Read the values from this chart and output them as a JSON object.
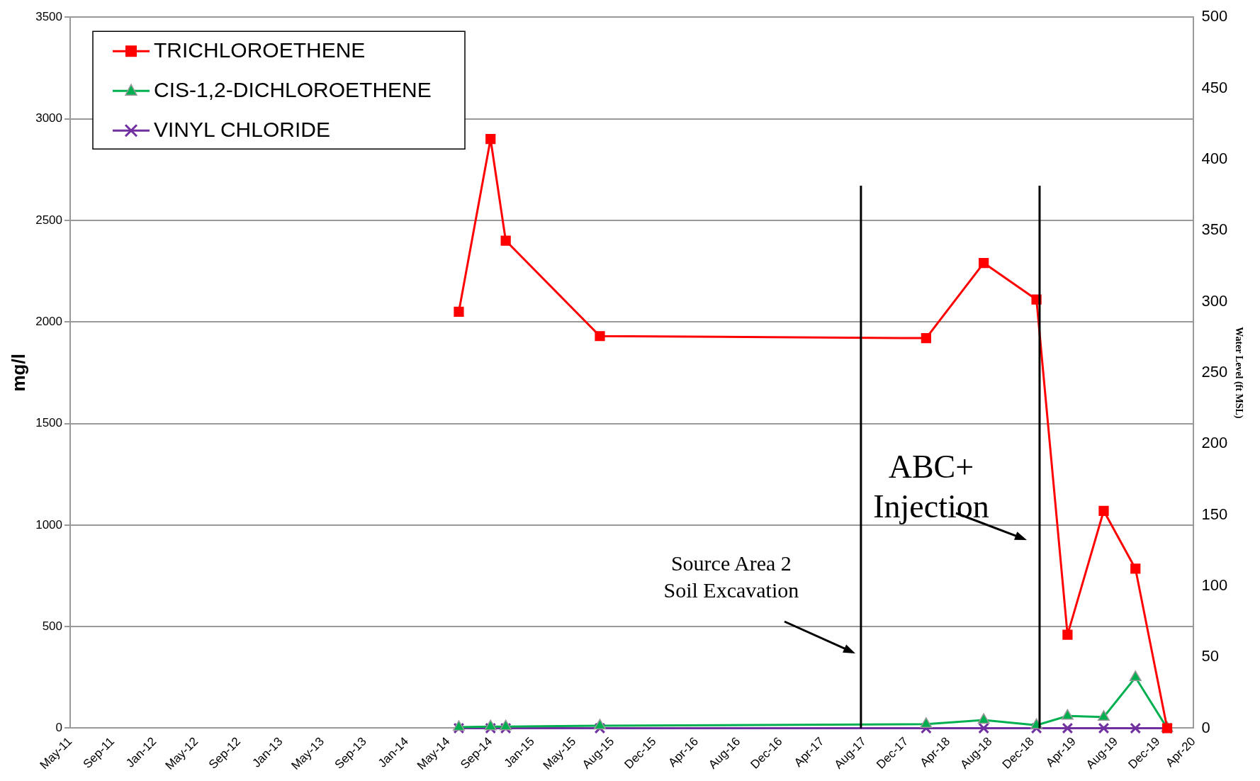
{
  "chart_data": {
    "type": "line",
    "ylabel": "mg/l",
    "y2label": "Water Level (ft MSL)",
    "x": [
      "2014-06-01",
      "2014-09-01",
      "2014-10-15",
      "2015-07-15",
      "2018-02-15",
      "2018-08-01",
      "2019-01-01",
      "2019-04-01",
      "2019-07-15",
      "2019-10-15",
      "2020-01-15"
    ],
    "series": [
      {
        "name": "TRICHLOROETHENE",
        "color": "#ff0000",
        "marker": "square",
        "values": [
          2050,
          2900,
          2400,
          1930,
          1920,
          2290,
          2110,
          460,
          1070,
          785,
          0
        ]
      },
      {
        "name": "CIS-1,2-DICHLOROETHENE",
        "color": "#00b050",
        "marker": "triangle",
        "values": [
          5,
          8,
          8,
          12,
          20,
          40,
          15,
          60,
          55,
          250,
          0
        ]
      },
      {
        "name": "VINYL CHLORIDE",
        "color": "#7030a0",
        "marker": "cross",
        "values": [
          0,
          0,
          0,
          0,
          0,
          0,
          0,
          0,
          0,
          0,
          0
        ]
      }
    ],
    "xlim": [
      "2011-05-01",
      "2020-04-01"
    ],
    "xticks": [
      {
        "value": "2011-05-01",
        "label": "May-11"
      },
      {
        "value": "2011-09-01",
        "label": "Sep-11"
      },
      {
        "value": "2012-01-01",
        "label": "Jan-12"
      },
      {
        "value": "2012-05-01",
        "label": "May-12"
      },
      {
        "value": "2012-09-01",
        "label": "Sep-12"
      },
      {
        "value": "2013-01-01",
        "label": "Jan-13"
      },
      {
        "value": "2013-05-01",
        "label": "May-13"
      },
      {
        "value": "2013-09-01",
        "label": "Sep-13"
      },
      {
        "value": "2014-01-01",
        "label": "Jan-14"
      },
      {
        "value": "2014-05-01",
        "label": "May-14"
      },
      {
        "value": "2014-09-01",
        "label": "Sep-14"
      },
      {
        "value": "2015-01-01",
        "label": "Jan-15"
      },
      {
        "value": "2015-05-01",
        "label": "May-15"
      },
      {
        "value": "2015-08-20",
        "label": "Aug-15"
      },
      {
        "value": "2015-12-20",
        "label": "Dec-15"
      },
      {
        "value": "2016-04-20",
        "label": "Apr-16"
      },
      {
        "value": "2016-08-20",
        "label": "Aug-16"
      },
      {
        "value": "2016-12-20",
        "label": "Dec-16"
      },
      {
        "value": "2017-04-20",
        "label": "Apr-17"
      },
      {
        "value": "2017-08-20",
        "label": "Aug-17"
      },
      {
        "value": "2017-12-20",
        "label": "Dec-17"
      },
      {
        "value": "2018-04-20",
        "label": "Apr-18"
      },
      {
        "value": "2018-08-20",
        "label": "Aug-18"
      },
      {
        "value": "2018-12-20",
        "label": "Dec-18"
      },
      {
        "value": "2019-04-20",
        "label": "Apr-19"
      },
      {
        "value": "2019-08-20",
        "label": "Aug-19"
      },
      {
        "value": "2019-12-20",
        "label": "Dec-19"
      },
      {
        "value": "2020-04-01",
        "label": "Apr-20"
      }
    ],
    "ylim": [
      0,
      3500
    ],
    "yticks": [
      0,
      500,
      1000,
      1500,
      2000,
      2500,
      3000,
      3500
    ],
    "y2lim": [
      0,
      500
    ],
    "y2ticks": [
      0,
      50,
      100,
      150,
      200,
      250,
      300,
      350,
      400,
      450,
      500
    ],
    "ref_lines": [
      {
        "axis": "x",
        "value": "2017-08-10",
        "color": "#000000"
      },
      {
        "axis": "x",
        "value": "2019-01-10",
        "color": "#000000"
      }
    ],
    "annotations": [
      "Source Area 2\nSoil Excavation",
      "ABC+\nInjection"
    ],
    "grid": "y",
    "legend": "top left"
  }
}
